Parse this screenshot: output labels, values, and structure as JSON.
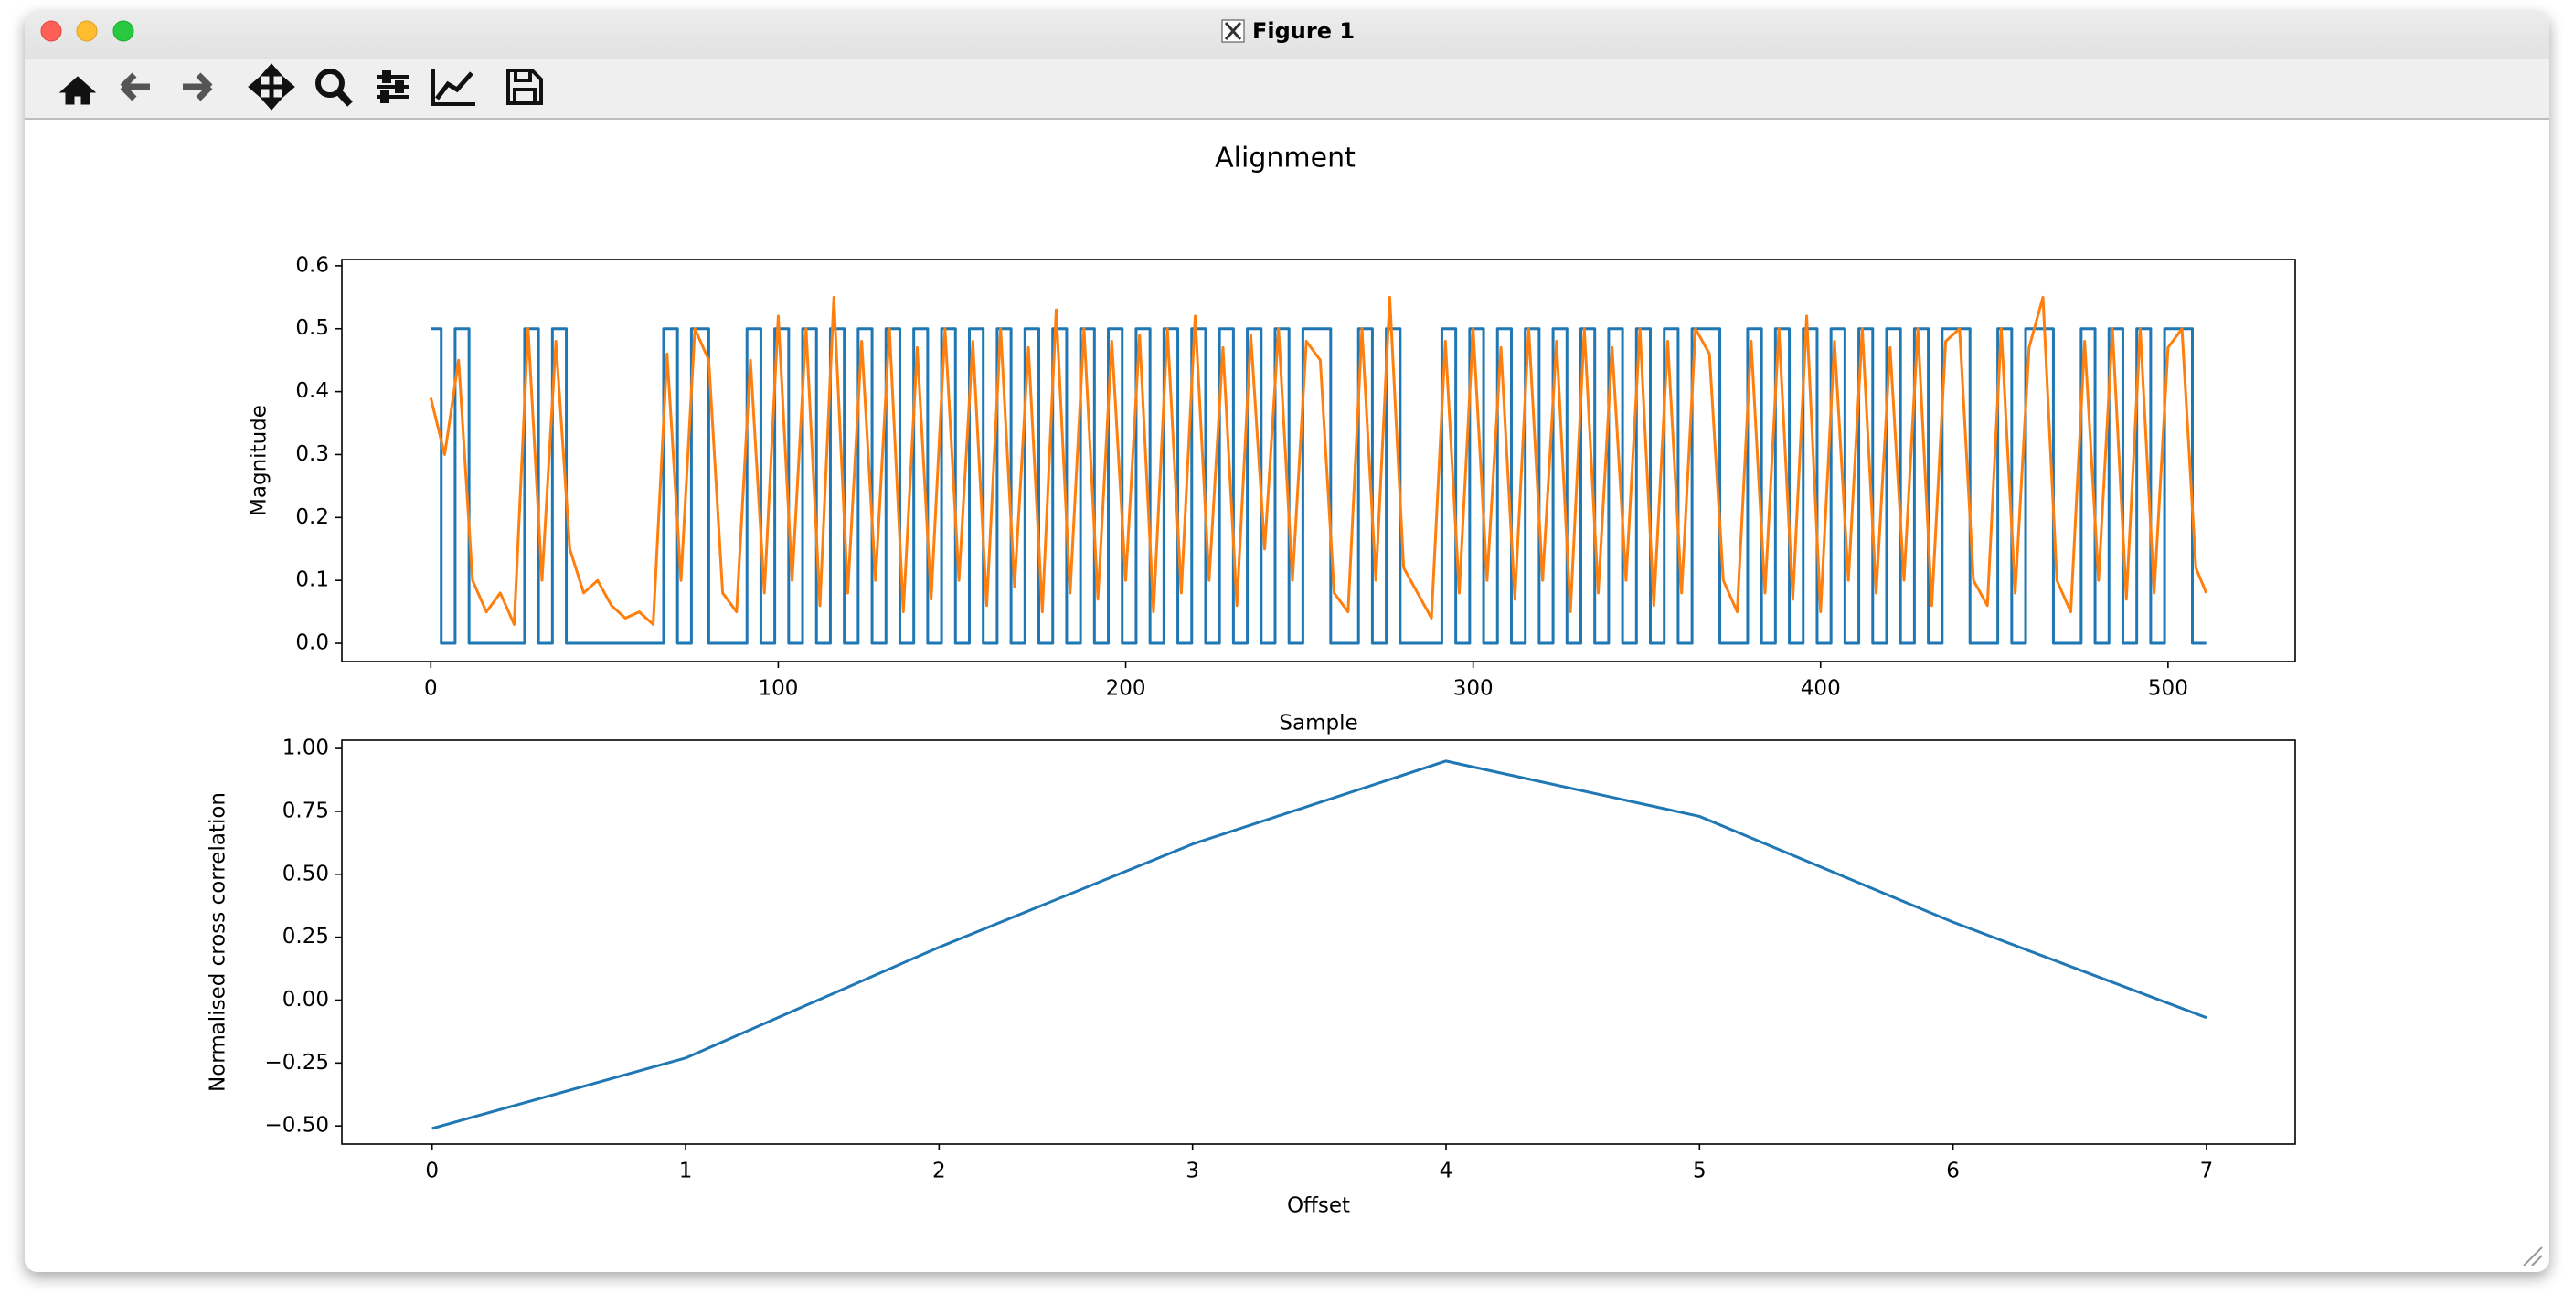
{
  "window": {
    "title": "Figure 1"
  },
  "chart_data": [
    {
      "type": "line",
      "title": "Alignment",
      "xlabel": "Sample",
      "ylabel": "Magnitude",
      "xlim": [
        -25.6,
        536.6
      ],
      "ylim": [
        -0.029,
        0.61
      ],
      "xticks": [
        0,
        100,
        200,
        300,
        400,
        500
      ],
      "yticks": [
        {
          "value": 0,
          "label": "0.0"
        },
        0.1,
        0.2,
        0.3,
        0.4,
        0.5,
        0.6
      ],
      "series": [
        {
          "color": "#1f77b4",
          "drawstyle": "steps-post",
          "x": [
            0,
            3,
            7,
            11,
            27,
            31,
            35,
            39,
            67,
            71,
            75,
            80,
            91,
            95,
            99,
            103,
            107,
            111,
            115,
            119,
            123,
            127,
            131,
            135,
            139,
            143,
            147,
            151,
            155,
            159,
            163,
            167,
            171,
            175,
            179,
            183,
            187,
            191,
            195,
            199,
            203,
            207,
            211,
            215,
            219,
            223,
            227,
            231,
            235,
            239,
            243,
            247,
            251,
            259,
            267,
            271,
            275,
            279,
            291,
            295,
            299,
            303,
            307,
            311,
            315,
            319,
            323,
            327,
            331,
            335,
            339,
            343,
            347,
            351,
            355,
            359,
            363,
            371,
            379,
            383,
            387,
            391,
            395,
            399,
            403,
            407,
            411,
            415,
            419,
            423,
            427,
            431,
            435,
            443,
            451,
            455,
            459,
            467,
            475,
            479,
            483,
            487,
            491,
            495,
            499,
            507,
            511
          ],
          "values": [
            0.5,
            0,
            0.5,
            0,
            0.5,
            0,
            0.5,
            0,
            0.5,
            0,
            0.5,
            0,
            0.5,
            0,
            0.5,
            0,
            0.5,
            0,
            0.5,
            0,
            0.5,
            0,
            0.5,
            0,
            0.5,
            0,
            0.5,
            0,
            0.5,
            0,
            0.5,
            0,
            0.5,
            0,
            0.5,
            0,
            0.5,
            0,
            0.5,
            0,
            0.5,
            0,
            0.5,
            0,
            0.5,
            0,
            0.5,
            0,
            0.5,
            0,
            0.5,
            0,
            0.5,
            0,
            0.5,
            0,
            0.5,
            0,
            0.5,
            0,
            0.5,
            0,
            0.5,
            0,
            0.5,
            0,
            0.5,
            0,
            0.5,
            0,
            0.5,
            0,
            0.5,
            0,
            0.5,
            0,
            0.5,
            0,
            0.5,
            0,
            0.5,
            0,
            0.5,
            0,
            0.5,
            0,
            0.5,
            0,
            0.5,
            0,
            0.5,
            0,
            0.5,
            0,
            0.5,
            0,
            0.5,
            0,
            0.5,
            0,
            0.5,
            0,
            0.5,
            0,
            0.5,
            0,
            0
          ]
        },
        {
          "color": "#ff7f0e",
          "x": [
            0,
            4,
            8,
            12,
            16,
            20,
            24,
            28,
            32,
            36,
            40,
            44,
            48,
            52,
            56,
            60,
            64,
            68,
            72,
            76,
            80,
            84,
            88,
            92,
            96,
            100,
            104,
            108,
            112,
            116,
            120,
            124,
            128,
            132,
            136,
            140,
            144,
            148,
            152,
            156,
            160,
            164,
            168,
            172,
            176,
            180,
            184,
            188,
            192,
            196,
            200,
            204,
            208,
            212,
            216,
            220,
            224,
            228,
            232,
            236,
            240,
            244,
            248,
            252,
            256,
            260,
            264,
            268,
            272,
            276,
            280,
            284,
            288,
            292,
            296,
            300,
            304,
            308,
            312,
            316,
            320,
            324,
            328,
            332,
            336,
            340,
            344,
            348,
            352,
            356,
            360,
            364,
            368,
            372,
            376,
            380,
            384,
            388,
            392,
            396,
            400,
            404,
            408,
            412,
            416,
            420,
            424,
            428,
            432,
            436,
            440,
            444,
            448,
            452,
            456,
            460,
            464,
            468,
            472,
            476,
            480,
            484,
            488,
            492,
            496,
            500,
            504,
            508,
            511
          ],
          "values": [
            0.39,
            0.3,
            0.45,
            0.1,
            0.05,
            0.08,
            0.03,
            0.5,
            0.1,
            0.48,
            0.15,
            0.08,
            0.1,
            0.06,
            0.04,
            0.05,
            0.03,
            0.46,
            0.1,
            0.5,
            0.45,
            0.08,
            0.05,
            0.45,
            0.08,
            0.52,
            0.1,
            0.5,
            0.06,
            0.55,
            0.08,
            0.48,
            0.1,
            0.5,
            0.05,
            0.47,
            0.07,
            0.5,
            0.1,
            0.48,
            0.06,
            0.5,
            0.09,
            0.47,
            0.05,
            0.53,
            0.08,
            0.5,
            0.07,
            0.48,
            0.1,
            0.49,
            0.05,
            0.5,
            0.08,
            0.52,
            0.1,
            0.47,
            0.06,
            0.49,
            0.15,
            0.5,
            0.1,
            0.48,
            0.45,
            0.08,
            0.05,
            0.5,
            0.1,
            0.55,
            0.12,
            0.08,
            0.04,
            0.48,
            0.08,
            0.5,
            0.1,
            0.47,
            0.07,
            0.5,
            0.1,
            0.48,
            0.05,
            0.5,
            0.08,
            0.47,
            0.1,
            0.5,
            0.06,
            0.48,
            0.08,
            0.5,
            0.46,
            0.1,
            0.05,
            0.48,
            0.08,
            0.5,
            0.07,
            0.52,
            0.05,
            0.48,
            0.1,
            0.5,
            0.08,
            0.47,
            0.1,
            0.5,
            0.06,
            0.48,
            0.5,
            0.1,
            0.06,
            0.5,
            0.08,
            0.47,
            0.55,
            0.1,
            0.05,
            0.48,
            0.1,
            0.5,
            0.07,
            0.5,
            0.08,
            0.47,
            0.5,
            0.12,
            0.08
          ]
        }
      ]
    },
    {
      "type": "line",
      "xlabel": "Offset",
      "ylabel": "Normalised cross correlation",
      "xlim": [
        -0.356,
        7.35
      ],
      "ylim": [
        -0.572,
        1.033
      ],
      "xticks": [
        0,
        1,
        2,
        3,
        4,
        5,
        6,
        7
      ],
      "yticks": [
        {
          "value": -0.5,
          "label": "−0.50"
        },
        {
          "value": -0.25,
          "label": "−0.25"
        },
        {
          "value": 0,
          "label": "0.00"
        },
        {
          "value": 0.25,
          "label": "0.25"
        },
        {
          "value": 0.5,
          "label": "0.50"
        },
        {
          "value": 0.75,
          "label": "0.75"
        },
        {
          "value": 1,
          "label": "1.00"
        }
      ],
      "series": [
        {
          "color": "#1f77b4",
          "x": [
            0,
            1,
            2,
            3,
            4,
            5,
            6,
            7
          ],
          "values": [
            -0.51,
            -0.23,
            0.21,
            0.62,
            0.95,
            0.73,
            0.31,
            -0.07
          ]
        }
      ]
    }
  ]
}
